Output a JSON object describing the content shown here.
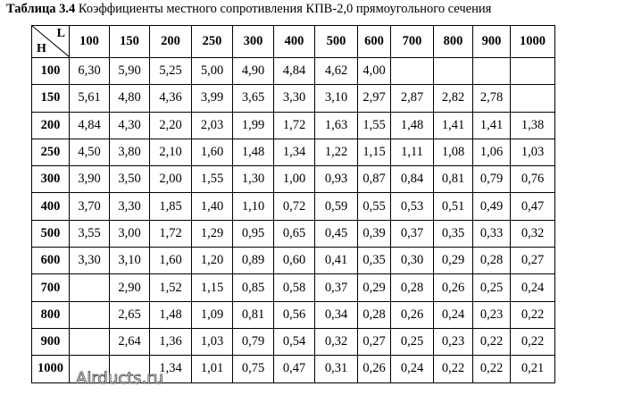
{
  "caption": {
    "number": "Таблица 3.4",
    "text": "Коэффициенты местного сопротивления КПВ-2,0 прямоугольного сечения"
  },
  "table": {
    "corner_col_label": "L",
    "corner_row_label": "H",
    "columns": [
      "100",
      "150",
      "200",
      "250",
      "300",
      "400",
      "500",
      "600",
      "700",
      "800",
      "900",
      "1000"
    ],
    "rows": [
      {
        "h": "100",
        "values": [
          "6,30",
          "5,90",
          "5,25",
          "5,00",
          "4,90",
          "4,84",
          "4,62",
          "4,00",
          "",
          "",
          "",
          ""
        ]
      },
      {
        "h": "150",
        "values": [
          "5,61",
          "4,80",
          "4,36",
          "3,99",
          "3,65",
          "3,30",
          "3,10",
          "2,97",
          "2,87",
          "2,82",
          "2,78",
          ""
        ]
      },
      {
        "h": "200",
        "values": [
          "4,84",
          "4,30",
          "2,20",
          "2,03",
          "1,99",
          "1,72",
          "1,63",
          "1,55",
          "1,48",
          "1,41",
          "1,41",
          "1,38"
        ]
      },
      {
        "h": "250",
        "values": [
          "4,50",
          "3,80",
          "2,10",
          "1,60",
          "1,48",
          "1,34",
          "1,22",
          "1,15",
          "1,11",
          "1,08",
          "1,06",
          "1,03"
        ]
      },
      {
        "h": "300",
        "values": [
          "3,90",
          "3,50",
          "2,00",
          "1,55",
          "1,30",
          "1,00",
          "0,93",
          "0,87",
          "0,84",
          "0,81",
          "0,79",
          "0,76"
        ]
      },
      {
        "h": "400",
        "values": [
          "3,70",
          "3,30",
          "1,85",
          "1,40",
          "1,10",
          "0,72",
          "0,59",
          "0,55",
          "0,53",
          "0,51",
          "0,49",
          "0,47"
        ]
      },
      {
        "h": "500",
        "values": [
          "3,55",
          "3,00",
          "1,72",
          "1,29",
          "0,95",
          "0,65",
          "0,45",
          "0,39",
          "0,37",
          "0,35",
          "0,33",
          "0,32"
        ]
      },
      {
        "h": "600",
        "values": [
          "3,30",
          "3,10",
          "1,60",
          "1,20",
          "0,89",
          "0,60",
          "0,41",
          "0,35",
          "0,30",
          "0,29",
          "0,28",
          "0,27"
        ]
      },
      {
        "h": "700",
        "values": [
          "",
          "2,90",
          "1,52",
          "1,15",
          "0,85",
          "0,58",
          "0,37",
          "0,29",
          "0,28",
          "0,26",
          "0,25",
          "0,24"
        ]
      },
      {
        "h": "800",
        "values": [
          "",
          "2,65",
          "1,48",
          "1,09",
          "0,81",
          "0,56",
          "0,34",
          "0,28",
          "0,26",
          "0,24",
          "0,23",
          "0,22"
        ]
      },
      {
        "h": "900",
        "values": [
          "",
          "2,64",
          "1,36",
          "1,03",
          "0,79",
          "0,54",
          "0,32",
          "0,27",
          "0,25",
          "0,23",
          "0,22",
          "0,22"
        ]
      },
      {
        "h": "1000",
        "values": [
          "",
          "",
          "1,34",
          "1,01",
          "0,75",
          "0,47",
          "0,31",
          "0,26",
          "0,24",
          "0,22",
          "0,22",
          "0,21"
        ]
      }
    ]
  },
  "watermark": "Airducts.ru"
}
